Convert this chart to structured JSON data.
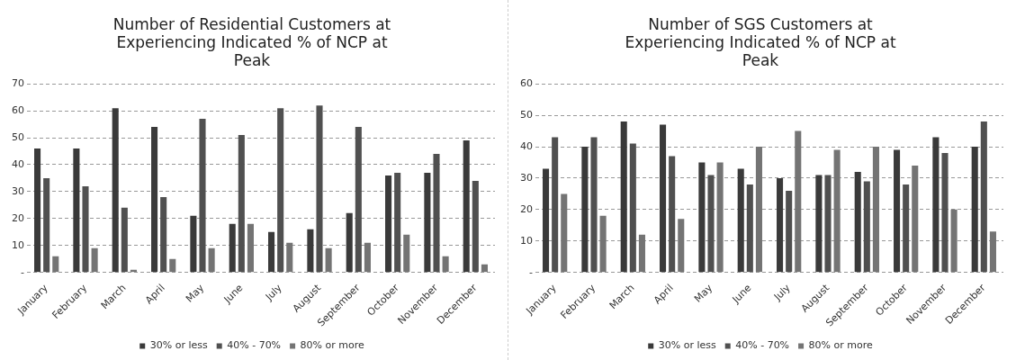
{
  "chart_data": [
    {
      "type": "bar",
      "title": "Number of Residential Customers at Experiencing Indicated % of NCP at Peak",
      "categories": [
        "January",
        "February",
        "March",
        "April",
        "May",
        "June",
        "July",
        "August",
        "September",
        "October",
        "November",
        "December"
      ],
      "series": [
        {
          "name": "30% or less",
          "color": "#3a3a3a",
          "values": [
            46,
            46,
            61,
            54,
            21,
            18,
            15,
            16,
            22,
            36,
            37,
            49
          ]
        },
        {
          "name": "40% - 70%",
          "color": "#505050",
          "values": [
            35,
            32,
            24,
            28,
            57,
            51,
            61,
            62,
            54,
            37,
            44,
            34
          ]
        },
        {
          "name": "80% or more",
          "color": "#747474",
          "values": [
            6,
            9,
            1,
            5,
            9,
            18,
            11,
            9,
            11,
            14,
            6,
            3
          ]
        }
      ],
      "ylim": [
        0,
        70
      ],
      "yticks": [
        {
          "value": 0,
          "label": "-"
        },
        10,
        20,
        30,
        40,
        50,
        60,
        70
      ],
      "grid": "y",
      "legend": "bottom"
    },
    {
      "type": "bar",
      "title": "Number of SGS Customers at Experiencing Indicated % of NCP at Peak",
      "categories": [
        "January",
        "February",
        "March",
        "April",
        "May",
        "June",
        "July",
        "August",
        "September",
        "October",
        "November",
        "December"
      ],
      "series": [
        {
          "name": "30% or less",
          "color": "#3a3a3a",
          "values": [
            33,
            40,
            48,
            47,
            35,
            33,
            30,
            31,
            32,
            39,
            43,
            40
          ]
        },
        {
          "name": "40% - 70%",
          "color": "#505050",
          "values": [
            43,
            43,
            41,
            37,
            31,
            28,
            26,
            31,
            29,
            28,
            38,
            48
          ]
        },
        {
          "name": "80% or more",
          "color": "#747474",
          "values": [
            25,
            18,
            12,
            17,
            35,
            40,
            45,
            39,
            40,
            34,
            20,
            13
          ]
        }
      ],
      "ylim": [
        0,
        60
      ],
      "yticks": [
        {
          "value": 0,
          "label": "-"
        },
        10,
        20,
        30,
        40,
        50,
        60
      ],
      "grid": "y",
      "legend": "bottom"
    }
  ]
}
